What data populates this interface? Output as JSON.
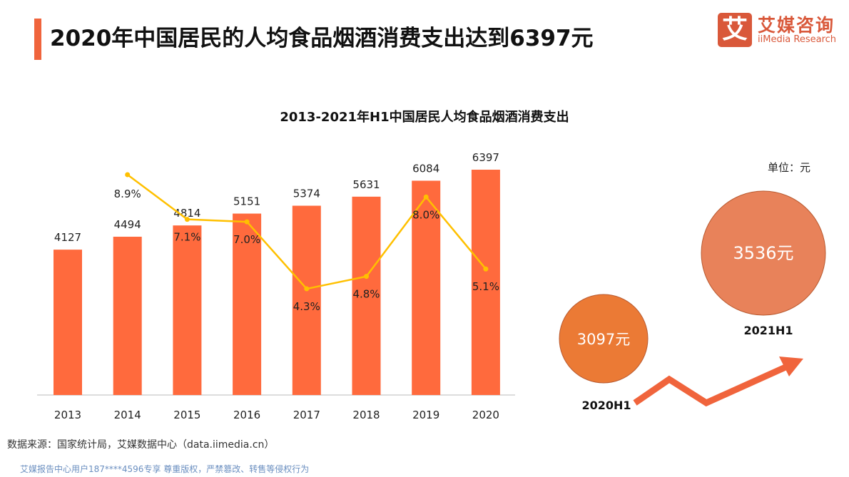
{
  "header": {
    "title": "2020年中国居民的人均食品烟酒消费支出达到6397元",
    "logo_mark": "艾",
    "logo_cn": "艾媒咨询",
    "logo_en": "iiMedia Research"
  },
  "chart_data": [
    {
      "type": "bar+line",
      "title": "2013-2021年H1中国居民人均食品烟酒消费支出",
      "categories": [
        "2013",
        "2014",
        "2015",
        "2016",
        "2017",
        "2018",
        "2019",
        "2020"
      ],
      "series": [
        {
          "type": "bar",
          "values": [
            4127,
            4494,
            4814,
            5151,
            5374,
            5631,
            6084,
            6397
          ],
          "color": "#ff6a3d"
        },
        {
          "type": "line",
          "values": [
            null,
            8.9,
            7.1,
            7.0,
            4.3,
            4.8,
            8.0,
            5.1
          ],
          "labels": [
            "",
            "8.9%",
            "7.1%",
            "7.0%",
            "4.3%",
            "4.8%",
            "8.0%",
            "5.1%"
          ],
          "color": "#ffc000"
        }
      ]
    },
    {
      "type": "bubble",
      "unit": "单位：元",
      "categories": [
        "2020H1",
        "2021H1"
      ],
      "values": [
        3097,
        3536
      ],
      "labels": [
        "3097元",
        "3536元"
      ],
      "colors": [
        "#eb7a35",
        "#e8825a"
      ]
    }
  ],
  "footer": {
    "source": "数据来源：国家统计局，艾媒数据中心（data.iimedia.cn）",
    "watermark": "艾媒报告中心用户187****4596专享 尊重版权，严禁篡改、转售等侵权行为"
  }
}
